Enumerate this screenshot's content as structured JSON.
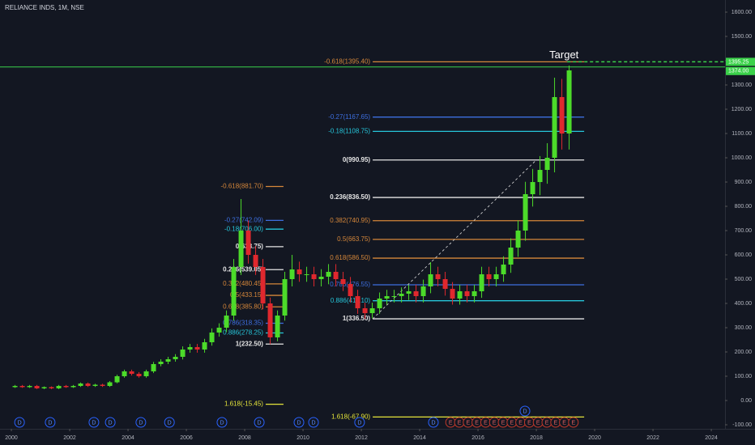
{
  "chart_data": {
    "type": "candlestick",
    "title": "RELIANCE INDS, 1M, NSE",
    "up_color": "#4cdb2a",
    "down_color": "#e0282e",
    "x": [
      2000.125,
      2000.375,
      2000.625,
      2000.875,
      2001.125,
      2001.375,
      2001.625,
      2001.875,
      2002.125,
      2002.375,
      2002.625,
      2002.875,
      2003.125,
      2003.375,
      2003.625,
      2003.875,
      2004.125,
      2004.375,
      2004.625,
      2004.875,
      2005.125,
      2005.375,
      2005.625,
      2005.875,
      2006.125,
      2006.375,
      2006.625,
      2006.875,
      2007.125,
      2007.375,
      2007.625,
      2007.875,
      2008.125,
      2008.375,
      2008.625,
      2008.875,
      2009.125,
      2009.375,
      2009.625,
      2009.875,
      2010.125,
      2010.375,
      2010.625,
      2010.875,
      2011.125,
      2011.375,
      2011.625,
      2011.875,
      2012.125,
      2012.375,
      2012.625,
      2012.875,
      2013.125,
      2013.375,
      2013.625,
      2013.875,
      2014.125,
      2014.375,
      2014.625,
      2014.875,
      2015.125,
      2015.375,
      2015.625,
      2015.875,
      2016.125,
      2016.375,
      2016.625,
      2016.875,
      2017.125,
      2017.375,
      2017.625,
      2017.875,
      2018.125,
      2018.375,
      2018.625,
      2018.875,
      2019.125
    ],
    "open": [
      55,
      60,
      55,
      60,
      50,
      55,
      50,
      60,
      55,
      60,
      70,
      60,
      65,
      60,
      75,
      100,
      120,
      110,
      100,
      120,
      150,
      160,
      170,
      180,
      210,
      220,
      210,
      240,
      280,
      300,
      350,
      550,
      700,
      600,
      550,
      400,
      260,
      350,
      500,
      540,
      520,
      520,
      500,
      510,
      530,
      500,
      480,
      430,
      380,
      360,
      380,
      420,
      430,
      430,
      440,
      450,
      430,
      470,
      520,
      500,
      460,
      420,
      450,
      430,
      450,
      520,
      500,
      520,
      560,
      630,
      700,
      850,
      900,
      950,
      1000,
      1250,
      1100
    ],
    "high": [
      64,
      64,
      64,
      64,
      58,
      58,
      64,
      64,
      64,
      74,
      74,
      69,
      69,
      80,
      106,
      127,
      127,
      117,
      127,
      159,
      170,
      180,
      191,
      223,
      233,
      233,
      254,
      297,
      318,
      371,
      583,
      830,
      742,
      636,
      583,
      424,
      371,
      530,
      600,
      572,
      551,
      551,
      541,
      562,
      562,
      530,
      509,
      456,
      403,
      403,
      445,
      456,
      456,
      466,
      477,
      477,
      498,
      570,
      551,
      530,
      488,
      477,
      477,
      477,
      551,
      551,
      551,
      594,
      668,
      742,
      901,
      954,
      1007,
      1060,
      1330,
      1325,
      1380
    ],
    "low": [
      52,
      52,
      52,
      47,
      47,
      47,
      47,
      52,
      52,
      56,
      56,
      56,
      56,
      56,
      71,
      94,
      103,
      94,
      94,
      113,
      141,
      150,
      160,
      169,
      197,
      197,
      197,
      226,
      263,
      282,
      329,
      517,
      564,
      517,
      376,
      232,
      244,
      329,
      470,
      489,
      489,
      470,
      470,
      479,
      470,
      451,
      404,
      357,
      336,
      338,
      357,
      395,
      404,
      404,
      414,
      404,
      404,
      442,
      470,
      432,
      395,
      395,
      404,
      404,
      423,
      470,
      470,
      489,
      526,
      592,
      658,
      799,
      846,
      893,
      940,
      1034,
      1034
    ],
    "close": [
      60,
      55,
      60,
      50,
      55,
      50,
      60,
      55,
      60,
      70,
      60,
      65,
      60,
      75,
      100,
      120,
      110,
      100,
      120,
      150,
      160,
      170,
      180,
      210,
      220,
      210,
      240,
      280,
      300,
      350,
      550,
      700,
      600,
      550,
      400,
      260,
      350,
      500,
      540,
      520,
      520,
      500,
      510,
      530,
      500,
      480,
      430,
      380,
      360,
      380,
      420,
      430,
      430,
      440,
      450,
      430,
      470,
      520,
      500,
      460,
      420,
      450,
      430,
      450,
      520,
      500,
      520,
      560,
      630,
      700,
      850,
      900,
      950,
      1000,
      1250,
      1100,
      1360
    ],
    "xlim": [
      1999.61,
      2024.47
    ],
    "xticks": [
      2000,
      2002,
      2004,
      2006,
      2008,
      2010,
      2012,
      2014,
      2016,
      2018,
      2020,
      2022,
      2024
    ],
    "ylim": [
      -116.67,
      1650
    ],
    "yticks": [
      {
        "value": -100,
        "label": "-100.00"
      },
      {
        "value": 0,
        "label": "0.00"
      },
      {
        "value": 100,
        "label": "100.00"
      },
      {
        "value": 200,
        "label": "200.00"
      },
      {
        "value": 300,
        "label": "300.00"
      },
      {
        "value": 400,
        "label": "400.00"
      },
      {
        "value": 500,
        "label": "500.00"
      },
      {
        "value": 600,
        "label": "600.00"
      },
      {
        "value": 700,
        "label": "700.00"
      },
      {
        "value": 800,
        "label": "800.00"
      },
      {
        "value": 900,
        "label": "900.00"
      },
      {
        "value": 1000,
        "label": "1000.00"
      },
      {
        "value": 1100,
        "label": "1100.00"
      },
      {
        "value": 1200,
        "label": "1200.00"
      },
      {
        "value": 1300,
        "label": "1300.00"
      },
      {
        "value": 1400,
        "label": "1400.00"
      },
      {
        "value": 1500,
        "label": "1500.00"
      },
      {
        "value": 1600,
        "label": "1600.00"
      }
    ],
    "fib_sets": [
      {
        "x": [
          2008.72,
          2009.33
        ],
        "levels": [
          {
            "label": "-0.618(881.70)",
            "value": 881.7,
            "color": "#d6873a"
          },
          {
            "label": "-0.27(742.09)",
            "value": 742.09,
            "color": "#3d6fe0"
          },
          {
            "label": "-0.18(706.00)",
            "value": 706,
            "color": "#26c6da"
          },
          {
            "label": "0(633.75)",
            "value": 633.75,
            "color": "#e6e6e6"
          },
          {
            "label": "0.236(539.05)",
            "value": 539.05,
            "color": "#e6e6e6"
          },
          {
            "label": "0.382(480.45)",
            "value": 480.45,
            "color": "#d6873a"
          },
          {
            "label": "0.5(433.15)",
            "value": 433.15,
            "color": "#d6873a"
          },
          {
            "label": "0.618(385.80)",
            "value": 385.8,
            "color": "#d6873a"
          },
          {
            "label": "0.786(318.35)",
            "value": 318.35,
            "color": "#3d6fe0"
          },
          {
            "label": "0.886(278.25)",
            "value": 278.25,
            "color": "#26c6da"
          },
          {
            "label": "1(232.50)",
            "value": 232.5,
            "color": "#e6e6e6"
          },
          {
            "label": "1.618(-15.45)",
            "value": -15.45,
            "color": "#e5e53a"
          }
        ]
      },
      {
        "x": [
          2012.39,
          2019.64
        ],
        "levels": [
          {
            "label": "-0.618(1395.40)",
            "value": 1395.4,
            "color": "#d6873a"
          },
          {
            "label": "-0.27(1167.65)",
            "value": 1167.65,
            "color": "#3d6fe0"
          },
          {
            "label": "-0.18(1108.75)",
            "value": 1108.75,
            "color": "#26c6da"
          },
          {
            "label": "0(990.95)",
            "value": 990.95,
            "color": "#e6e6e6"
          },
          {
            "label": "0.236(836.50)",
            "value": 836.5,
            "color": "#e6e6e6"
          },
          {
            "label": "0.382(740.95)",
            "value": 740.95,
            "color": "#d6873a"
          },
          {
            "label": "0.5(663.75)",
            "value": 663.75,
            "color": "#d6873a"
          },
          {
            "label": "0.618(586.50)",
            "value": 586.5,
            "color": "#d6873a"
          },
          {
            "label": "0.786(476.55)",
            "value": 476.55,
            "color": "#3d6fe0"
          },
          {
            "label": "0.886(411.10)",
            "value": 411.1,
            "color": "#26c6da"
          },
          {
            "label": "1(336.50)",
            "value": 336.5,
            "color": "#e6e6e6"
          },
          {
            "label": "1.618(-67.90)",
            "value": -67.9,
            "color": "#e5e53a"
          }
        ]
      }
    ],
    "trendline": {
      "x": [
        2012.39,
        2018.0
      ],
      "y": [
        336.5,
        990.95
      ]
    },
    "price_line": {
      "value": 1374,
      "label": "1374.00",
      "color": "#3bd14a"
    },
    "target": {
      "text": "Target",
      "value": 1395.25,
      "label": "1395.25",
      "x": 2019.06,
      "color": "#3bd14a"
    },
    "dividends": [
      {
        "label": "D",
        "x": 2000.28
      },
      {
        "label": "D",
        "x": 2001.33
      },
      {
        "label": "D",
        "x": 2002.83
      },
      {
        "label": "D",
        "x": 2003.39
      },
      {
        "label": "D",
        "x": 2004.44
      },
      {
        "label": "D",
        "x": 2005.42
      },
      {
        "label": "D",
        "x": 2007.22
      },
      {
        "label": "D",
        "x": 2008.5
      },
      {
        "label": "D",
        "x": 2009.86
      },
      {
        "label": "D",
        "x": 2010.36
      },
      {
        "label": "D",
        "x": 2011.94
      },
      {
        "label": "D",
        "x": 2014.47
      },
      {
        "label": "D",
        "x": 2017.61
      }
    ],
    "earnings": [
      {
        "label": "E",
        "x": 2015.06
      },
      {
        "label": "E",
        "x": 2015.36
      },
      {
        "label": "E",
        "x": 2015.66
      },
      {
        "label": "E",
        "x": 2015.96
      },
      {
        "label": "E",
        "x": 2016.26
      },
      {
        "label": "E",
        "x": 2016.56
      },
      {
        "label": "E",
        "x": 2016.86
      },
      {
        "label": "E",
        "x": 2017.16
      },
      {
        "label": "E",
        "x": 2017.46
      },
      {
        "label": "E",
        "x": 2017.76
      },
      {
        "label": "E",
        "x": 2018.06
      },
      {
        "label": "E",
        "x": 2018.36
      },
      {
        "label": "E",
        "x": 2018.66
      },
      {
        "label": "E",
        "x": 2018.96
      },
      {
        "label": "E",
        "x": 2019.27
      }
    ]
  }
}
